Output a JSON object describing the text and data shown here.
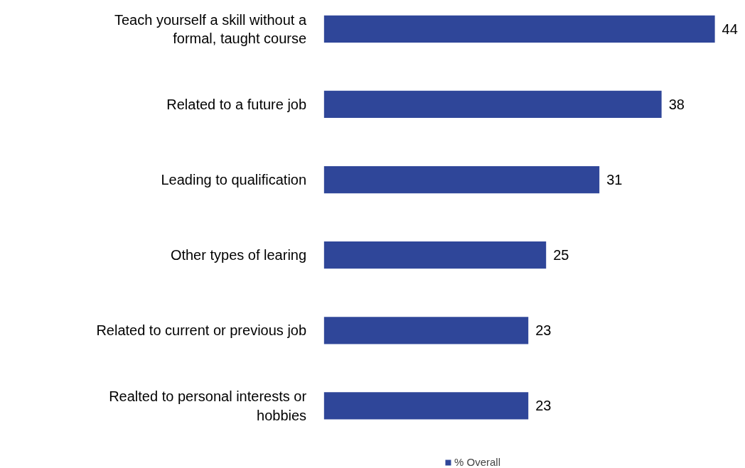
{
  "chart_data": {
    "type": "bar",
    "orientation": "horizontal",
    "categories": [
      "Teach yourself a skill without a formal, taught course",
      "Related to a future job",
      "Leading to qualification",
      "Other types of learing",
      "Related to current or previous job",
      "Realted to personal interests or hobbies"
    ],
    "series": [
      {
        "name": "% Overall",
        "color": "#2f4699",
        "values": [
          44,
          38,
          31,
          25,
          23,
          23
        ]
      }
    ],
    "data_labels": true,
    "legend": "bottom",
    "grid": false
  }
}
